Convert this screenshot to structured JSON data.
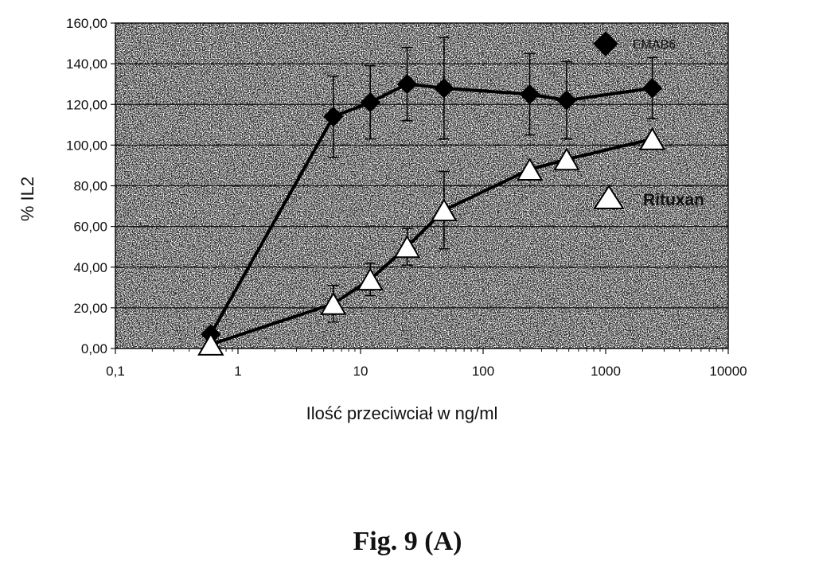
{
  "chart_data": {
    "type": "line",
    "xscale": "log",
    "xlim": [
      0.1,
      10000
    ],
    "ylim": [
      0,
      160
    ],
    "xlabel": "Ilość przeciwciał w ng/ml",
    "ylabel": "% IL2",
    "x_tick_labels": [
      "0,1",
      "1",
      "10",
      "100",
      "1000",
      "10000"
    ],
    "x_tick_values": [
      0.1,
      1,
      10,
      100,
      1000,
      10000
    ],
    "y_tick_labels": [
      "0,00",
      "20,00",
      "40,00",
      "60,00",
      "80,00",
      "100,00",
      "120,00",
      "140,00",
      "160,00"
    ],
    "y_tick_values": [
      0,
      20,
      40,
      60,
      80,
      100,
      120,
      140,
      160
    ],
    "grid": "horizontal",
    "legend_position": "right",
    "series": [
      {
        "name": "EMAB6",
        "marker": "diamond",
        "color": "#000000",
        "points": [
          {
            "x": 0.6,
            "y": 7,
            "err": 0
          },
          {
            "x": 6,
            "y": 114,
            "err": 20
          },
          {
            "x": 12,
            "y": 121,
            "err": 18
          },
          {
            "x": 24,
            "y": 130,
            "err": 18
          },
          {
            "x": 48,
            "y": 128,
            "err": 25
          },
          {
            "x": 240,
            "y": 125,
            "err": 20
          },
          {
            "x": 480,
            "y": 122,
            "err": 19
          },
          {
            "x": 2400,
            "y": 128,
            "err": 15
          }
        ]
      },
      {
        "name": "Rituxan",
        "marker": "triangle",
        "color": "#ffffff",
        "points": [
          {
            "x": 0.6,
            "y": 2,
            "err": 0
          },
          {
            "x": 6,
            "y": 22,
            "err": 9
          },
          {
            "x": 12,
            "y": 34,
            "err": 8
          },
          {
            "x": 24,
            "y": 50,
            "err": 9
          },
          {
            "x": 48,
            "y": 68,
            "err": 19
          },
          {
            "x": 240,
            "y": 88,
            "err": 0
          },
          {
            "x": 480,
            "y": 93,
            "err": 0
          },
          {
            "x": 2400,
            "y": 103,
            "err": 0
          }
        ]
      }
    ]
  },
  "caption": "Fig. 9 (A)"
}
